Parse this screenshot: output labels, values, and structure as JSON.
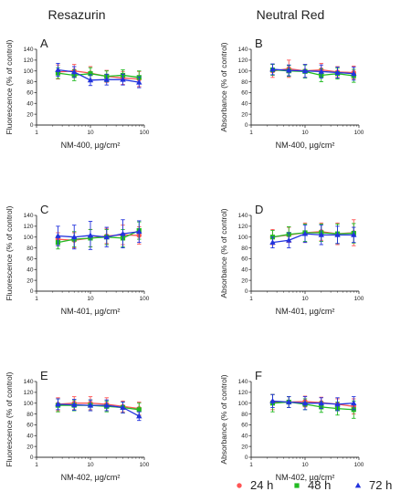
{
  "columns": [
    {
      "title": "Resazurin"
    },
    {
      "title": "Neutral Red"
    }
  ],
  "legend": [
    {
      "label": "24 h",
      "color": "#ff5555",
      "marker": "circle"
    },
    {
      "label": "48 h",
      "color": "#22bb22",
      "marker": "square"
    },
    {
      "label": "72 h",
      "color": "#2233dd",
      "marker": "triangle"
    }
  ],
  "chart_data": [
    {
      "type": "line",
      "panel": "A",
      "column": "Resazurin",
      "ylabel": "Fluorescence (% of control)",
      "xlabel": "NM-400, µg/cm²",
      "xscale": "log",
      "xlim": [
        1,
        100
      ],
      "ylim": [
        0,
        140
      ],
      "yticks": [
        0,
        20,
        40,
        60,
        80,
        100,
        120,
        140
      ],
      "xticks": [
        {
          "v": 1,
          "t": "1"
        },
        {
          "v": 10,
          "t": "10"
        },
        {
          "v": 100,
          "t": "100"
        }
      ],
      "x": [
        2.5,
        5,
        10,
        20,
        40,
        80
      ],
      "series": [
        {
          "name": "24 h",
          "values": [
            98,
            100,
            96,
            90,
            87,
            85
          ],
          "err": [
            13,
            12,
            12,
            11,
            12,
            14
          ]
        },
        {
          "name": "48 h",
          "values": [
            96,
            92,
            95,
            90,
            92,
            88
          ],
          "err": [
            10,
            10,
            11,
            10,
            10,
            12
          ]
        },
        {
          "name": "72 h",
          "values": [
            102,
            98,
            83,
            84,
            84,
            79
          ],
          "err": [
            12,
            10,
            10,
            10,
            10,
            10
          ]
        }
      ]
    },
    {
      "type": "line",
      "panel": "B",
      "column": "Neutral Red",
      "ylabel": "Absorbance (% of control)",
      "xlabel": "NM-400, µg/cm²",
      "xscale": "log",
      "xlim": [
        1,
        100
      ],
      "ylim": [
        0,
        140
      ],
      "yticks": [
        0,
        20,
        40,
        60,
        80,
        100,
        120,
        140
      ],
      "xticks": [
        {
          "v": 1,
          "t": "1"
        },
        {
          "v": 10,
          "t": "10"
        },
        {
          "v": 100,
          "t": "100"
        }
      ],
      "x": [
        2.5,
        5,
        10,
        20,
        40,
        80
      ],
      "series": [
        {
          "name": "24 h",
          "values": [
            100,
            104,
            100,
            102,
            98,
            97
          ],
          "err": [
            12,
            16,
            12,
            12,
            10,
            12
          ]
        },
        {
          "name": "48 h",
          "values": [
            102,
            100,
            99,
            92,
            95,
            91
          ],
          "err": [
            10,
            10,
            12,
            12,
            10,
            12
          ]
        },
        {
          "name": "72 h",
          "values": [
            103,
            101,
            100,
            99,
            97,
            95
          ],
          "err": [
            10,
            10,
            12,
            12,
            10,
            12
          ]
        }
      ]
    },
    {
      "type": "line",
      "panel": "C",
      "column": "Resazurin",
      "ylabel": "Fluorescence (% of control)",
      "xlabel": "NM-401, µg/cm²",
      "xscale": "log",
      "xlim": [
        1,
        100
      ],
      "ylim": [
        0,
        140
      ],
      "yticks": [
        0,
        20,
        40,
        60,
        80,
        100,
        120,
        140
      ],
      "xticks": [
        {
          "v": 1,
          "t": "1"
        },
        {
          "v": 10,
          "t": "10"
        },
        {
          "v": 100,
          "t": "100"
        }
      ],
      "x": [
        2.5,
        5,
        10,
        20,
        40,
        80
      ],
      "series": [
        {
          "name": "24 h",
          "values": [
            96,
            94,
            98,
            102,
            104,
            103
          ],
          "err": [
            12,
            14,
            16,
            14,
            18,
            16
          ]
        },
        {
          "name": "48 h",
          "values": [
            90,
            96,
            98,
            100,
            98,
            112
          ],
          "err": [
            12,
            14,
            16,
            14,
            16,
            16
          ]
        },
        {
          "name": "72 h",
          "values": [
            102,
            100,
            103,
            100,
            106,
            110
          ],
          "err": [
            18,
            22,
            26,
            18,
            26,
            20
          ]
        }
      ]
    },
    {
      "type": "line",
      "panel": "D",
      "column": "Neutral Red",
      "ylabel": "Absorbance (% of control)",
      "xlabel": "NM-401, µg/cm²",
      "xscale": "log",
      "xlim": [
        1,
        100
      ],
      "ylim": [
        0,
        140
      ],
      "yticks": [
        0,
        20,
        40,
        60,
        80,
        100,
        120,
        140
      ],
      "xticks": [
        {
          "v": 1,
          "t": "1"
        },
        {
          "v": 10,
          "t": "10"
        },
        {
          "v": 100,
          "t": "100"
        }
      ],
      "x": [
        2.5,
        5,
        10,
        20,
        40,
        80
      ],
      "series": [
        {
          "name": "24 h",
          "values": [
            100,
            104,
            108,
            110,
            106,
            108
          ],
          "err": [
            14,
            14,
            18,
            16,
            20,
            24
          ]
        },
        {
          "name": "48 h",
          "values": [
            100,
            105,
            108,
            108,
            106,
            107
          ],
          "err": [
            12,
            14,
            16,
            16,
            18,
            18
          ]
        },
        {
          "name": "72 h",
          "values": [
            90,
            94,
            106,
            104,
            104,
            104
          ],
          "err": [
            10,
            14,
            16,
            18,
            16,
            14
          ]
        }
      ]
    },
    {
      "type": "line",
      "panel": "E",
      "column": "Resazurin",
      "ylabel": "Fluorescence (% of control)",
      "xlabel": "NM-402, µg/cm²",
      "xscale": "log",
      "xlim": [
        1,
        100
      ],
      "ylim": [
        0,
        140
      ],
      "yticks": [
        0,
        20,
        40,
        60,
        80,
        100,
        120,
        140
      ],
      "xticks": [
        {
          "v": 1,
          "t": "1"
        },
        {
          "v": 10,
          "t": "10"
        },
        {
          "v": 100,
          "t": "100"
        }
      ],
      "x": [
        2.5,
        5,
        10,
        20,
        40,
        80
      ],
      "series": [
        {
          "name": "24 h",
          "values": [
            98,
            100,
            100,
            98,
            94,
            90
          ],
          "err": [
            12,
            12,
            12,
            12,
            10,
            12
          ]
        },
        {
          "name": "48 h",
          "values": [
            96,
            96,
            96,
            94,
            92,
            88
          ],
          "err": [
            12,
            10,
            10,
            10,
            10,
            12
          ]
        },
        {
          "name": "72 h",
          "values": [
            98,
            97,
            96,
            96,
            92,
            76
          ],
          "err": [
            10,
            10,
            10,
            10,
            10,
            8
          ]
        }
      ]
    },
    {
      "type": "line",
      "panel": "F",
      "column": "Neutral Red",
      "ylabel": "Absorbance (% of control)",
      "xlabel": "NM-402, µg/cm²",
      "xscale": "log",
      "xlim": [
        1,
        100
      ],
      "ylim": [
        0,
        140
      ],
      "yticks": [
        0,
        20,
        40,
        60,
        80,
        100,
        120,
        140
      ],
      "xticks": [
        {
          "v": 1,
          "t": "1"
        },
        {
          "v": 10,
          "t": "10"
        },
        {
          "v": 100,
          "t": "100"
        }
      ],
      "x": [
        2.5,
        5,
        10,
        20,
        40,
        80
      ],
      "series": [
        {
          "name": "24 h",
          "values": [
            102,
            102,
            103,
            101,
            98,
            94
          ],
          "err": [
            14,
            10,
            10,
            10,
            10,
            14
          ]
        },
        {
          "name": "48 h",
          "values": [
            100,
            102,
            98,
            93,
            90,
            88
          ],
          "err": [
            16,
            10,
            10,
            10,
            12,
            16
          ]
        },
        {
          "name": "72 h",
          "values": [
            104,
            102,
            100,
            100,
            98,
            100
          ],
          "err": [
            12,
            10,
            12,
            10,
            12,
            12
          ]
        }
      ]
    }
  ]
}
